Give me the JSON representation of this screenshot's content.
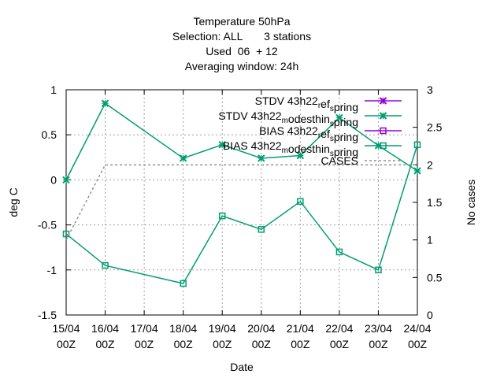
{
  "chart_data": {
    "type": "line",
    "title_lines": [
      "Temperature 50hPa",
      "Selection: ALL       3 stations",
      "Used  06  + 12",
      "Averaging window: 24h"
    ],
    "xlabel": "Date",
    "ylabel": "deg C",
    "y2label": "No cases",
    "categories": [
      "15/04",
      "16/04",
      "17/04",
      "18/04",
      "19/04",
      "20/04",
      "21/04",
      "22/04",
      "23/04",
      "24/04"
    ],
    "category_sublabel": "00Z",
    "ylim": [
      -1.5,
      1
    ],
    "yticks": [
      -1.5,
      -1,
      -0.5,
      0,
      0.5,
      1
    ],
    "ytick_labels": [
      "-1.5",
      "-1",
      "-0.5",
      "0",
      "0.5",
      "1"
    ],
    "y2lim": [
      0,
      3
    ],
    "y2ticks": [
      0,
      0.5,
      1,
      1.5,
      2,
      2.5,
      3
    ],
    "y2tick_labels": [
      "0",
      "0.5",
      "1",
      "1.5",
      "2",
      "2.5",
      "3"
    ],
    "grid": true,
    "legend_position": "top-right",
    "series": [
      {
        "name": "STDV 43h22 ref spring",
        "legend_parts": [
          [
            "STDV 43h22",
            ""
          ],
          [
            "r",
            "sub"
          ],
          [
            "ef",
            ""
          ],
          [
            "s",
            "sub"
          ],
          [
            "pring",
            ""
          ]
        ],
        "axis": "y1",
        "color": "#9400d3",
        "marker": "x",
        "dashed": false,
        "x": [],
        "values": []
      },
      {
        "name": "STDV 43h22 modesthin spring",
        "legend_parts": [
          [
            "STDV 43h22",
            ""
          ],
          [
            "m",
            "sub"
          ],
          [
            "odesthin",
            ""
          ],
          [
            "s",
            "sub"
          ],
          [
            "pring",
            ""
          ]
        ],
        "axis": "y1",
        "color": "#009e73",
        "marker": "x",
        "dashed": false,
        "x": [
          "15/04",
          "16/04",
          "18/04",
          "19/04",
          "20/04",
          "21/04",
          "22/04",
          "23/04",
          "24/04"
        ],
        "values": [
          0,
          0.85,
          0.24,
          0.39,
          0.24,
          0.27,
          0.69,
          0.38,
          0.1
        ]
      },
      {
        "name": "BIAS 43h22 ref spring",
        "legend_parts": [
          [
            "BIAS 43h22",
            ""
          ],
          [
            "r",
            "sub"
          ],
          [
            "ef",
            ""
          ],
          [
            "s",
            "sub"
          ],
          [
            "pring",
            ""
          ]
        ],
        "axis": "y1",
        "color": "#9400d3",
        "marker": "square",
        "dashed": false,
        "x": [],
        "values": []
      },
      {
        "name": "BIAS 43h22 modesthin spring",
        "legend_parts": [
          [
            "BIAS 43h22",
            ""
          ],
          [
            "m",
            "sub"
          ],
          [
            "odesthin",
            ""
          ],
          [
            "s",
            "sub"
          ],
          [
            "pring",
            ""
          ]
        ],
        "axis": "y1",
        "color": "#009e73",
        "marker": "square",
        "dashed": false,
        "x": [
          "15/04",
          "16/04",
          "18/04",
          "19/04",
          "20/04",
          "21/04",
          "22/04",
          "23/04",
          "24/04"
        ],
        "values": [
          -0.6,
          -0.95,
          -1.15,
          -0.4,
          -0.55,
          -0.24,
          -0.8,
          -1.0,
          0.39
        ]
      },
      {
        "name": "CASES",
        "legend_parts": [
          [
            "CASES",
            ""
          ]
        ],
        "axis": "y2",
        "color": "#909090",
        "marker": "none",
        "dashed": true,
        "x": [
          "15/04",
          "16/04",
          "18/04",
          "19/04",
          "20/04",
          "21/04",
          "22/04",
          "23/04",
          "24/04"
        ],
        "values": [
          1,
          2,
          2,
          2,
          2,
          2,
          2,
          2,
          2
        ]
      }
    ]
  }
}
